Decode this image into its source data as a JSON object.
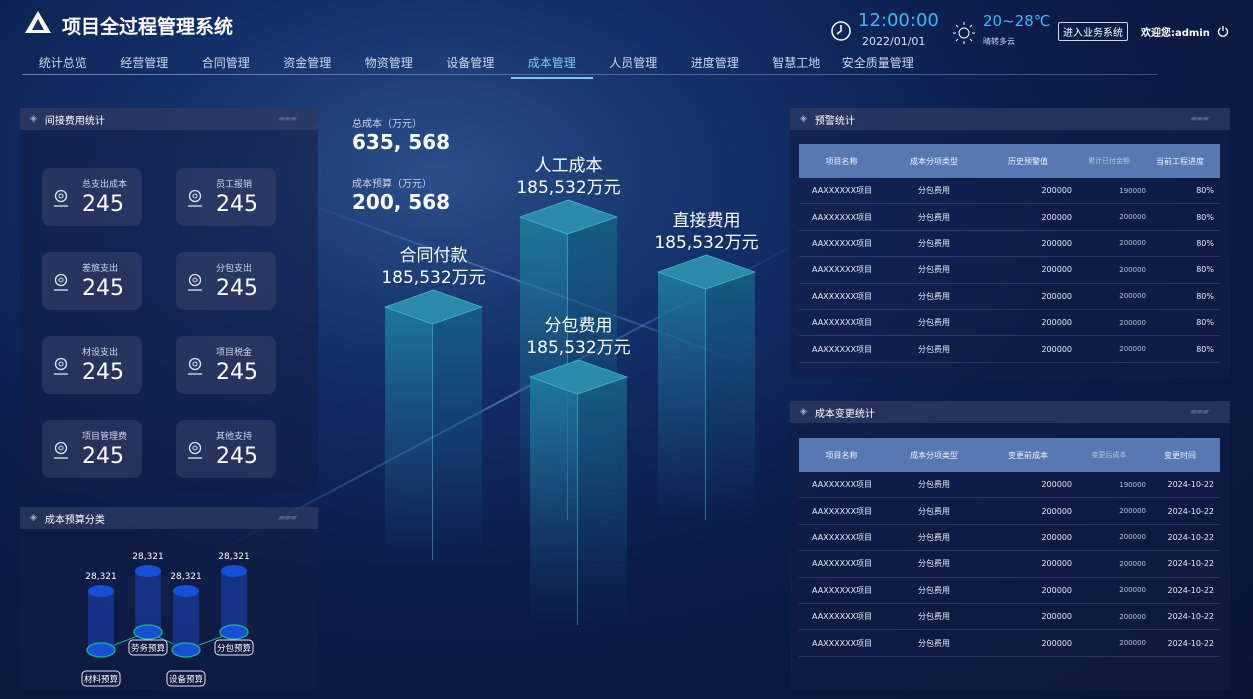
{
  "header": {
    "title": "项目全过程管理系统",
    "time": "12:00:00",
    "date": "2022/01/01",
    "temperature": "20~28℃",
    "weather": "晴转多云",
    "enter_button": "进入业务系统",
    "welcome": "欢迎您:admin"
  },
  "nav": [
    {
      "label": "统计总览"
    },
    {
      "label": "经营管理"
    },
    {
      "label": "合同管理"
    },
    {
      "label": "资金管理"
    },
    {
      "label": "物资管理"
    },
    {
      "label": "设备管理"
    },
    {
      "label": "成本管理",
      "active": true
    },
    {
      "label": "人员管理"
    },
    {
      "label": "进度管理"
    },
    {
      "label": "智慧工地"
    },
    {
      "label": "安全质量管理"
    }
  ],
  "indirect": {
    "title": "间接费用统计",
    "items": [
      {
        "label": "总支出成本",
        "value": "245"
      },
      {
        "label": "员工报销",
        "value": "245"
      },
      {
        "label": "差旅支出",
        "value": "245"
      },
      {
        "label": "分包支出",
        "value": "245"
      },
      {
        "label": "材设支出",
        "value": "245"
      },
      {
        "label": "项目税金",
        "value": "245"
      },
      {
        "label": "项目管理费",
        "value": "245"
      },
      {
        "label": "其他支持",
        "value": "245"
      }
    ]
  },
  "budget": {
    "title": "成本预算分类",
    "items": [
      {
        "label": "材料预算",
        "value": "28,321"
      },
      {
        "label": "劳务预算",
        "value": "28,321"
      },
      {
        "label": "设备预算",
        "value": "28,321"
      },
      {
        "label": "分包预算",
        "value": "28,321"
      }
    ]
  },
  "center": {
    "total_label": "总成本（万元）",
    "total_value": "635, 568",
    "budget_label": "成本预算（万元）",
    "budget_value": "200, 568",
    "prisms": [
      {
        "name": "合同付款",
        "value": "185,532万元"
      },
      {
        "name": "人工成本",
        "value": "185,532万元"
      },
      {
        "name": "直接费用",
        "value": "185,532万元"
      },
      {
        "name": "分包费用",
        "value": "185,532万元"
      }
    ]
  },
  "warning": {
    "title": "预警统计",
    "columns": [
      "项目名称",
      "成本分项类型",
      "历史预警值",
      "累计已付金额",
      "当前工程进度"
    ],
    "rows": [
      [
        "AAXXXXXX项目",
        "分包费用",
        "200000",
        "190000",
        "80%"
      ],
      [
        "AAXXXXXX项目",
        "分包费用",
        "200000",
        "200000",
        "80%"
      ],
      [
        "AAXXXXXX项目",
        "分包费用",
        "200000",
        "200000",
        "80%"
      ],
      [
        "AAXXXXXX项目",
        "分包费用",
        "200000",
        "200000",
        "80%"
      ],
      [
        "AAXXXXXX项目",
        "分包费用",
        "200000",
        "200000",
        "80%"
      ],
      [
        "AAXXXXXX项目",
        "分包费用",
        "200000",
        "200000",
        "80%"
      ],
      [
        "AAXXXXXX项目",
        "分包费用",
        "200000",
        "200000",
        "80%"
      ]
    ]
  },
  "change": {
    "title": "成本变更统计",
    "columns": [
      "项目名称",
      "成本分项类型",
      "变更前成本",
      "变更后成本",
      "变更时间"
    ],
    "rows": [
      [
        "AAXXXXXX项目",
        "分包费用",
        "200000",
        "190000",
        "2024-10-22"
      ],
      [
        "AAXXXXXX项目",
        "分包费用",
        "200000",
        "200000",
        "2024-10-22"
      ],
      [
        "AAXXXXXX项目",
        "分包费用",
        "200000",
        "200000",
        "2024-10-22"
      ],
      [
        "AAXXXXXX项目",
        "分包费用",
        "200000",
        "200000",
        "2024-10-22"
      ],
      [
        "AAXXXXXX项目",
        "分包费用",
        "200000",
        "200000",
        "2024-10-22"
      ],
      [
        "AAXXXXXX项目",
        "分包费用",
        "200000",
        "200000",
        "2024-10-22"
      ],
      [
        "AAXXXXXX项目",
        "分包费用",
        "200000",
        "200000",
        "2024-10-22"
      ]
    ]
  }
}
